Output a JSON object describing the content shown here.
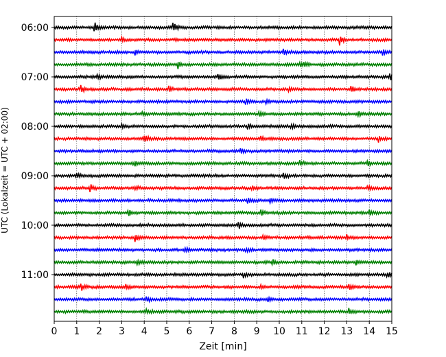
{
  "chart_data": {
    "type": "line",
    "title": "",
    "xlabel": "Zeit  [min]",
    "ylabel": "UTC (Lokalzeit = UTC + 02:00)",
    "xlim": [
      0,
      15
    ],
    "x_ticks": [
      "0",
      "1",
      "2",
      "3",
      "4",
      "5",
      "6",
      "7",
      "8",
      "9",
      "10",
      "11",
      "12",
      "13",
      "14",
      "15"
    ],
    "y_tick_labels": [
      "06:00",
      "07:00",
      "08:00",
      "09:00",
      "10:00",
      "11:00"
    ],
    "grid_x": true,
    "trace_interval_minutes": 15,
    "first_trace": "06:00",
    "trace_count": 24,
    "color_cycle": [
      "#000000",
      "#ff0000",
      "#0000ff",
      "#008000"
    ],
    "series": [
      {
        "start": "06:00",
        "events": [
          [
            1.8,
            1.0
          ],
          [
            5.3,
            1.0
          ]
        ]
      },
      {
        "start": "06:15",
        "events": [
          [
            3.0,
            0.5
          ],
          [
            12.7,
            1.0
          ]
        ]
      },
      {
        "start": "06:30",
        "events": [
          [
            3.6,
            0.5
          ],
          [
            10.2,
            0.8
          ],
          [
            14.6,
            0.5
          ]
        ]
      },
      {
        "start": "06:45",
        "events": [
          [
            5.5,
            0.8
          ],
          [
            10.9,
            0.6
          ],
          [
            11.1,
            0.6
          ]
        ]
      },
      {
        "start": "07:00",
        "events": [
          [
            1.9,
            0.6
          ],
          [
            7.3,
            0.6
          ],
          [
            14.9,
            1.0
          ]
        ]
      },
      {
        "start": "07:15",
        "events": [
          [
            1.2,
            0.8
          ],
          [
            5.1,
            0.6
          ],
          [
            10.4,
            0.5
          ],
          [
            13.2,
            0.6
          ]
        ]
      },
      {
        "start": "07:30",
        "events": [
          [
            8.5,
            0.7
          ],
          [
            9.4,
            0.5
          ]
        ]
      },
      {
        "start": "07:45",
        "events": [
          [
            3.9,
            0.6
          ],
          [
            9.1,
            0.5
          ],
          [
            13.5,
            0.6
          ]
        ]
      },
      {
        "start": "08:00",
        "events": [
          [
            3.0,
            0.4
          ],
          [
            8.6,
            0.8
          ],
          [
            10.5,
            0.5
          ]
        ]
      },
      {
        "start": "08:15",
        "events": [
          [
            4.0,
            1.0
          ],
          [
            9.2,
            0.4
          ],
          [
            14.4,
            0.7
          ]
        ]
      },
      {
        "start": "08:30",
        "events": [
          [
            8.3,
            0.7
          ]
        ]
      },
      {
        "start": "08:45",
        "events": [
          [
            3.6,
            0.4
          ],
          [
            10.9,
            0.8
          ],
          [
            13.9,
            0.5
          ]
        ]
      },
      {
        "start": "09:00",
        "events": [
          [
            1.0,
            0.4
          ],
          [
            10.2,
            0.8
          ]
        ]
      },
      {
        "start": "09:15",
        "events": [
          [
            1.6,
            0.8
          ],
          [
            3.6,
            0.4
          ],
          [
            8.8,
            0.4
          ],
          [
            13.9,
            0.6
          ]
        ]
      },
      {
        "start": "09:30",
        "events": [
          [
            8.6,
            0.6
          ],
          [
            9.6,
            0.4
          ]
        ]
      },
      {
        "start": "09:45",
        "events": [
          [
            3.3,
            0.6
          ],
          [
            9.2,
            0.5
          ],
          [
            14.0,
            0.5
          ]
        ]
      },
      {
        "start": "10:00",
        "events": [
          [
            8.2,
            0.7
          ]
        ]
      },
      {
        "start": "10:15",
        "events": [
          [
            3.6,
            0.9
          ],
          [
            9.3,
            0.5
          ],
          [
            13.0,
            0.5
          ]
        ]
      },
      {
        "start": "10:30",
        "events": [
          [
            5.8,
            0.5
          ],
          [
            8.5,
            0.5
          ]
        ]
      },
      {
        "start": "10:45",
        "events": [
          [
            3.7,
            0.5
          ],
          [
            9.7,
            0.5
          ],
          [
            13.4,
            0.6
          ]
        ]
      },
      {
        "start": "11:00",
        "events": [
          [
            8.4,
            0.6
          ],
          [
            14.8,
            0.7
          ]
        ]
      },
      {
        "start": "11:15",
        "events": [
          [
            1.2,
            0.8
          ],
          [
            3.2,
            0.5
          ],
          [
            9.2,
            0.4
          ],
          [
            13.1,
            0.6
          ]
        ]
      },
      {
        "start": "11:30",
        "events": [
          [
            4.1,
            0.6
          ],
          [
            9.5,
            0.7
          ]
        ]
      },
      {
        "start": "11:45",
        "events": [
          [
            4.1,
            0.5
          ],
          [
            13.1,
            0.6
          ]
        ]
      }
    ]
  }
}
